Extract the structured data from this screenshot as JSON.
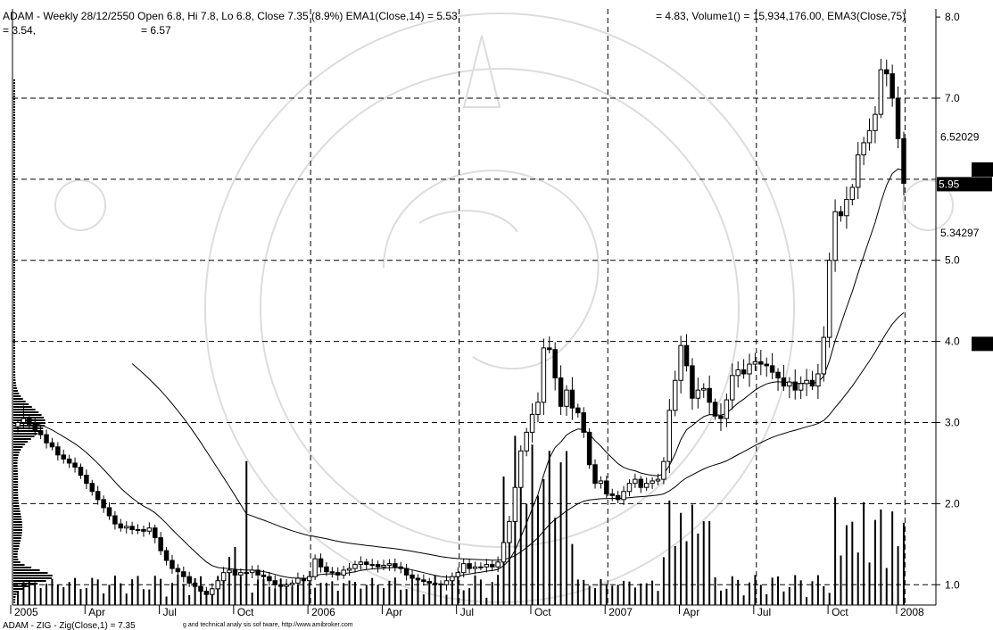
{
  "header": {
    "line1_left": "ADAM - Weekly 28/12/2550 Open 6.8, Hi 7.8, Lo 6.8, Close 7.35 (8.9%) EMA1(Close,14) = 5.53,",
    "line1_right": "= 4.83, Volume1() = 15,934,176.00, EMA3(Close,75)",
    "line2_a": "= 3.54,",
    "line2_b": "= 6.57"
  },
  "footer": {
    "zig_label": "ADAM - ZIG - Zig(Close,1) = 7.35",
    "credit": "g and technical analy sis sof tware,  http://www.amibroker.com"
  },
  "chart_data": {
    "type": "candlestick",
    "title": "ADAM - Weekly",
    "ylim": [
      0.75,
      8.1
    ],
    "y_ticks": [
      "8.0",
      "7.0",
      "5.0",
      "4.0",
      "3.0",
      "2.0",
      "1.0"
    ],
    "y_tick_values": [
      8.0,
      7.0,
      5.0,
      4.0,
      3.0,
      2.0,
      1.0
    ],
    "y_markers": [
      {
        "label": "6.52029",
        "value": 6.52,
        "boxed": false
      },
      {
        "label": "5.95",
        "value": 5.95,
        "boxed": true
      },
      {
        "label": "5.34297",
        "value": 5.34,
        "boxed": false
      }
    ],
    "x_labels": [
      "2005",
      "Apr",
      "Jul",
      "Oct",
      "2006",
      "Apr",
      "Jul",
      "Oct",
      "2007",
      "Apr",
      "Jul",
      "Oct",
      "2008"
    ],
    "x_label_weeks": [
      0,
      13,
      26,
      39,
      52,
      65,
      78,
      91,
      104,
      117,
      130,
      143,
      155
    ],
    "v_grid_weeks": [
      52,
      78,
      104,
      130,
      156
    ],
    "h_grid_values": [
      7.0,
      6.0,
      5.0,
      4.0,
      3.0,
      2.0,
      1.0
    ],
    "volume_scale_max": 33000000,
    "closes": [
      3.0,
      3.05,
      2.98,
      2.9,
      2.85,
      2.75,
      2.7,
      2.6,
      2.55,
      2.5,
      2.45,
      2.35,
      2.25,
      2.15,
      2.05,
      1.95,
      1.85,
      1.75,
      1.7,
      1.72,
      1.68,
      1.68,
      1.66,
      1.7,
      1.58,
      1.42,
      1.3,
      1.2,
      1.16,
      1.1,
      1.02,
      0.98,
      0.92,
      0.88,
      0.95,
      1.05,
      1.15,
      1.18,
      1.12,
      1.15,
      1.15,
      1.18,
      1.12,
      1.1,
      1.05,
      1.0,
      0.98,
      1.0,
      1.02,
      1.08,
      1.05,
      1.1,
      1.32,
      1.22,
      1.16,
      1.15,
      1.12,
      1.18,
      1.2,
      1.25,
      1.28,
      1.25,
      1.25,
      1.22,
      1.24,
      1.26,
      1.22,
      1.2,
      1.12,
      1.08,
      1.06,
      1.04,
      1.02,
      1.01,
      1.0,
      1.05,
      1.1,
      1.15,
      1.26,
      1.2,
      1.22,
      1.22,
      1.25,
      1.22,
      1.28,
      1.52,
      1.78,
      2.2,
      2.65,
      2.88,
      3.1,
      3.25,
      3.92,
      3.9,
      3.55,
      3.2,
      3.4,
      3.18,
      3.12,
      2.88,
      2.48,
      2.25,
      2.28,
      2.12,
      2.1,
      2.05,
      2.15,
      2.25,
      2.3,
      2.2,
      2.25,
      2.28,
      2.3,
      2.52,
      3.15,
      3.52,
      3.95,
      3.7,
      3.3,
      3.4,
      3.42,
      3.25,
      3.08,
      3.05,
      3.28,
      3.58,
      3.65,
      3.6,
      3.72,
      3.75,
      3.72,
      3.7,
      3.62,
      3.55,
      3.45,
      3.5,
      3.4,
      3.48,
      3.52,
      3.45,
      3.6,
      4.05,
      5.0,
      5.6,
      5.55,
      5.75,
      5.9,
      6.3,
      6.45,
      6.6,
      6.8,
      7.35,
      7.3,
      7.0,
      6.5,
      5.95
    ]
  }
}
